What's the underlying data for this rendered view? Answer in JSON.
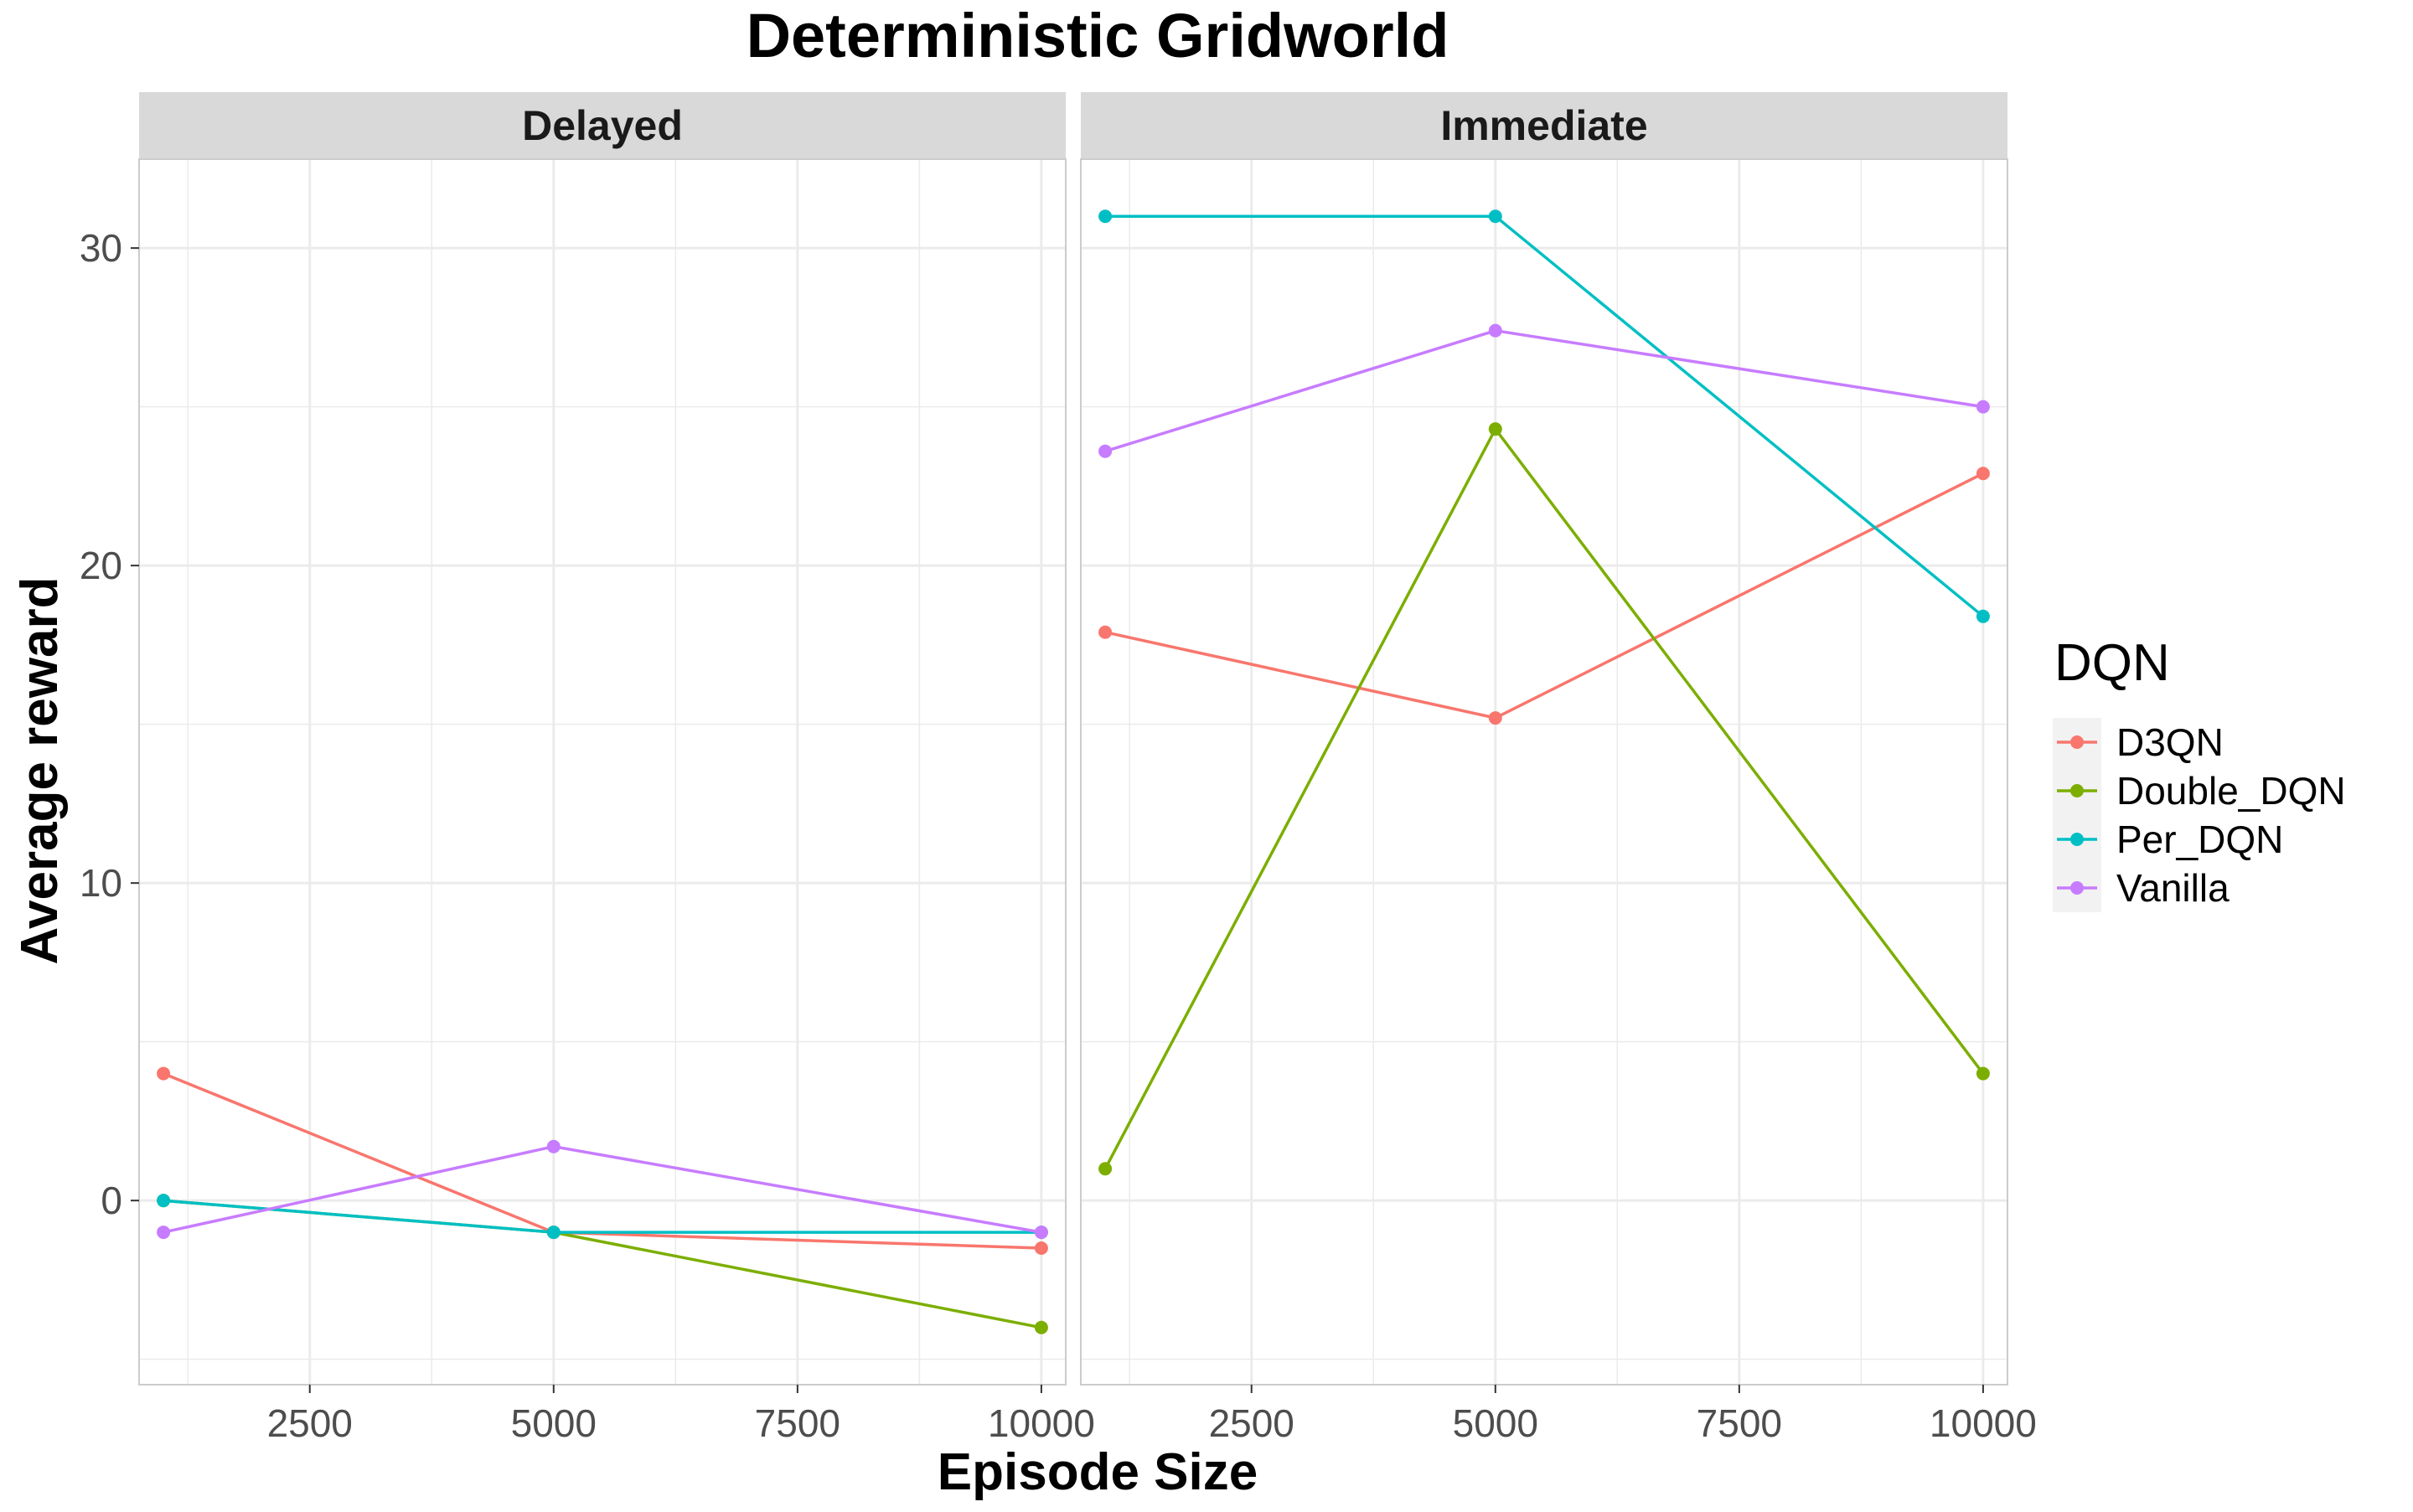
{
  "chart_data": {
    "type": "line",
    "title": "Deterministic Gridworld",
    "xlabel": "Episode Size",
    "ylabel": "Average reward",
    "x_ticks": [
      2500,
      5000,
      7500,
      10000
    ],
    "y_ticks": [
      0,
      10,
      20,
      30
    ],
    "xlim": [
      750,
      10250
    ],
    "ylim": [
      -5.8,
      32.8
    ],
    "grid": true,
    "legend": {
      "title": "DQN",
      "placement": "right",
      "entries": [
        "D3QN",
        "Double_DQN",
        "Per_DQN",
        "Vanilla"
      ]
    },
    "x": [
      1000,
      5000,
      10000
    ],
    "panels": [
      {
        "label": "Delayed",
        "series": [
          {
            "name": "D3QN",
            "color": "#F8766D",
            "values": [
              4.0,
              -1.0,
              -1.5
            ]
          },
          {
            "name": "Double_DQN",
            "color": "#7CAE00",
            "values": [
              0.0,
              -1.0,
              -4.0
            ]
          },
          {
            "name": "Per_DQN",
            "color": "#00BFC4",
            "values": [
              0.0,
              -1.0,
              -1.0
            ]
          },
          {
            "name": "Vanilla",
            "color": "#C77CFF",
            "values": [
              -1.0,
              1.7,
              -1.0
            ]
          }
        ]
      },
      {
        "label": "Immediate",
        "series": [
          {
            "name": "D3QN",
            "color": "#F8766D",
            "values": [
              17.9,
              15.2,
              22.9
            ]
          },
          {
            "name": "Double_DQN",
            "color": "#7CAE00",
            "values": [
              1.0,
              24.3,
              4.0
            ]
          },
          {
            "name": "Per_DQN",
            "color": "#00BFC4",
            "values": [
              31.0,
              31.0,
              18.4
            ]
          },
          {
            "name": "Vanilla",
            "color": "#C77CFF",
            "values": [
              23.6,
              27.4,
              25.0
            ]
          }
        ]
      }
    ]
  }
}
